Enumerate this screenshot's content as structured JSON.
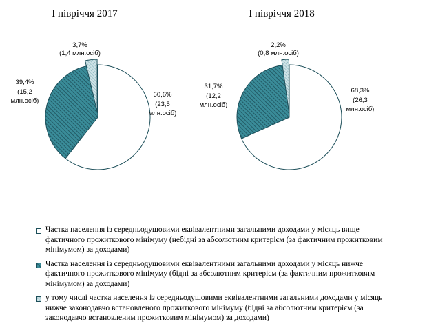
{
  "chart_data": [
    {
      "type": "pie",
      "title": "І півріччя 2017",
      "slices": [
        {
          "percent_label": "60,6%",
          "detail_label": "(23,5 млн.осіб)",
          "value": 60.6,
          "fill": "#ffffff",
          "pattern": "none"
        },
        {
          "percent_label": "39,4%",
          "detail_label": "(15,2 млн.осіб)",
          "value": 39.4,
          "fill": "#2e7d8c",
          "pattern": "hatch"
        },
        {
          "percent_label": "3,7%",
          "detail_label": "(1,4 млн.осіб)",
          "value": 3.7,
          "fill": "#bcd7dc",
          "pattern": "fine-hatch",
          "exploded": true
        }
      ]
    },
    {
      "type": "pie",
      "title": "І півріччя 2018",
      "slices": [
        {
          "percent_label": "68,3%",
          "detail_label": "(26,3 млн.осіб)",
          "value": 68.3,
          "fill": "#ffffff",
          "pattern": "none"
        },
        {
          "percent_label": "31,7%",
          "detail_label": "(12,2 млн.осіб)",
          "value": 31.7,
          "fill": "#2e7d8c",
          "pattern": "hatch"
        },
        {
          "percent_label": "2,2%",
          "detail_label": "(0,8 млн.осіб)",
          "value": 2.2,
          "fill": "#bcd7dc",
          "pattern": "fine-hatch",
          "exploded": true
        }
      ]
    }
  ],
  "legend": [
    {
      "text": "Частка населення із середньодушовими еквівалентними загальними доходами у місяць вище фактичного прожиткового мінімуму (небідні за абсолютним критерієм (за фактичним прожитковим мінімумом) за доходами)",
      "swatch": "white"
    },
    {
      "text": "Частка населення із середньодушовими еквівалентними загальними доходами у місяць нижче фактичного прожиткового мінімуму (бідні за абсолютним критерієм (за фактичним прожитковим мінімумом) за доходами)",
      "swatch": "dark-hatch"
    },
    {
      "text": "у тому числі частка населення із середньодушовими еквівалентними загальними доходами у місяць нижче законодавчо встановленого прожиткового мінімуму (бідні за абсолютним критерієм (за законодавчо встановленим прожитковим мінімумом) за доходами)",
      "swatch": "light-hatch"
    }
  ]
}
